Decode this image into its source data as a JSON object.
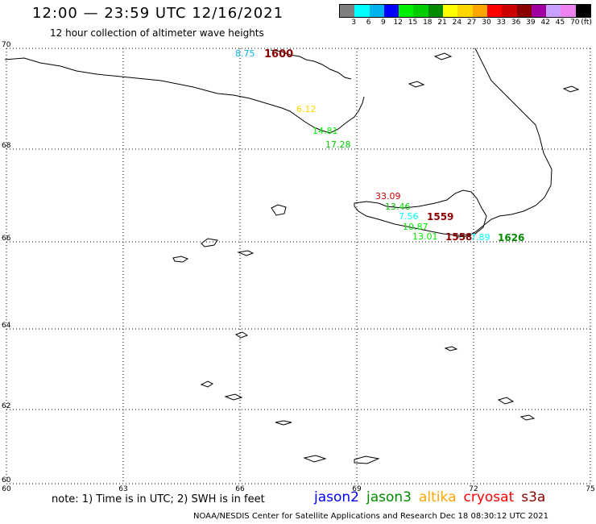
{
  "header": {
    "title": "12:00 — 23:59 UTC 12/16/2021",
    "subtitle": "12 hour collection of altimeter wave heights"
  },
  "colorbar": {
    "colors": [
      "#7f7f7f",
      "#00ffff",
      "#00b2ee",
      "#0000ff",
      "#00ee00",
      "#00cd00",
      "#008b00",
      "#ffff00",
      "#ffd700",
      "#ffa500",
      "#ff0000",
      "#cd0000",
      "#8b0000",
      "#a000a0",
      "#c8a0ff",
      "#ee82ee",
      "#000000"
    ],
    "labels": [
      "3",
      "6",
      "9",
      "12",
      "15",
      "18",
      "21",
      "24",
      "27",
      "30",
      "33",
      "36",
      "39",
      "42",
      "45",
      "70",
      "(ft)"
    ]
  },
  "axes": {
    "lat_labels": [
      "70",
      "68",
      "66",
      "64",
      "62",
      "60"
    ],
    "lon_labels": [
      "60",
      "63",
      "66",
      "69",
      "72",
      "75"
    ]
  },
  "observations": [
    {
      "text": "8.75",
      "color": "#00b2ee"
    },
    {
      "text": "1600",
      "color": "#8b0000"
    },
    {
      "text": "6.12",
      "color": "#ffd700"
    },
    {
      "text": "14.81",
      "color": "#00ee00"
    },
    {
      "text": "17.28",
      "color": "#00cd00"
    },
    {
      "text": "33.09",
      "color": "#cd0000"
    },
    {
      "text": "13.46",
      "color": "#00cd00"
    },
    {
      "text": "7.56",
      "color": "#00ffff"
    },
    {
      "text": "10.87",
      "color": "#00ee00"
    },
    {
      "text": "1559",
      "color": "#8b0000"
    },
    {
      "text": "13.01",
      "color": "#00ee00"
    },
    {
      "text": "1558",
      "color": "#8b0000"
    },
    {
      "text": "7.89",
      "color": "#00ffff"
    },
    {
      "text": "1626",
      "color": "#008b00"
    }
  ],
  "footer": {
    "note": "note:  1) Time is in UTC;  2) SWH is in feet",
    "legend": [
      {
        "name": "jason2",
        "color": "#0000ff"
      },
      {
        "name": "jason3",
        "color": "#008b00"
      },
      {
        "name": "altika",
        "color": "#ffa500"
      },
      {
        "name": "cryosat",
        "color": "#ff0000"
      },
      {
        "name": "s3a",
        "color": "#8b0000"
      }
    ],
    "credit": "NOAA/NESDIS Center for Satellite Applications and Research     Dec 18 08:30:12 UTC 2021"
  }
}
